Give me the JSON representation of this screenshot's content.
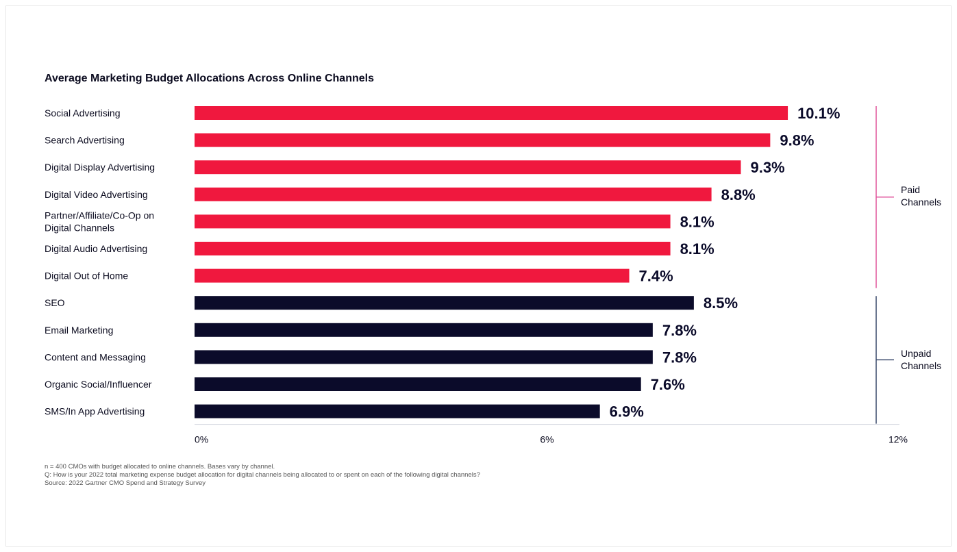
{
  "chart_data": {
    "type": "bar",
    "orientation": "horizontal",
    "title": "Average Marketing Budget Allocations Across Online Channels",
    "categories": [
      "Social Advertising",
      "Search Advertising",
      "Digital Display Advertising",
      "Digital Video Advertising",
      "Partner/Affiliate/Co-Op on Digital Channels",
      "Digital Audio Advertising",
      "Digital Out of Home",
      "SEO",
      "Email Marketing",
      "Content and Messaging",
      "Organic Social/Influencer",
      "SMS/In App Advertising"
    ],
    "values": [
      10.1,
      9.8,
      9.3,
      8.8,
      8.1,
      8.1,
      7.4,
      8.5,
      7.8,
      7.8,
      7.6,
      6.9
    ],
    "value_labels": [
      "10.1%",
      "9.8%",
      "9.3%",
      "8.8%",
      "8.1%",
      "8.1%",
      "7.4%",
      "8.5%",
      "7.8%",
      "7.8%",
      "7.6%",
      "6.9%"
    ],
    "bar_colors": [
      "#f0183e",
      "#f0183e",
      "#f0183e",
      "#f0183e",
      "#f0183e",
      "#f0183e",
      "#f0183e",
      "#0b0b2a",
      "#0b0b2a",
      "#0b0b2a",
      "#0b0b2a",
      "#0b0b2a"
    ],
    "groups": [
      {
        "label": "Paid\nChannels",
        "start": 0,
        "end": 6,
        "color": "#e0569c"
      },
      {
        "label": "Unpaid\nChannels",
        "start": 7,
        "end": 11,
        "color": "#3a4a6b"
      }
    ],
    "xlim": [
      0,
      12
    ],
    "xticks": [
      0,
      6,
      12
    ],
    "xtick_labels": [
      "0%",
      "6%",
      "12%"
    ],
    "xlabel": "",
    "ylabel": "",
    "grid": false,
    "legend": "none"
  },
  "footnotes": [
    "n = 400 CMOs with budget allocated to online channels. Bases vary by channel.",
    "Q: How is your 2022 total marketing expense budget allocation for digital channels being allocated to or spent on each of the following digital channels?",
    "Source: 2022 Gartner CMO Spend and Strategy Survey"
  ]
}
